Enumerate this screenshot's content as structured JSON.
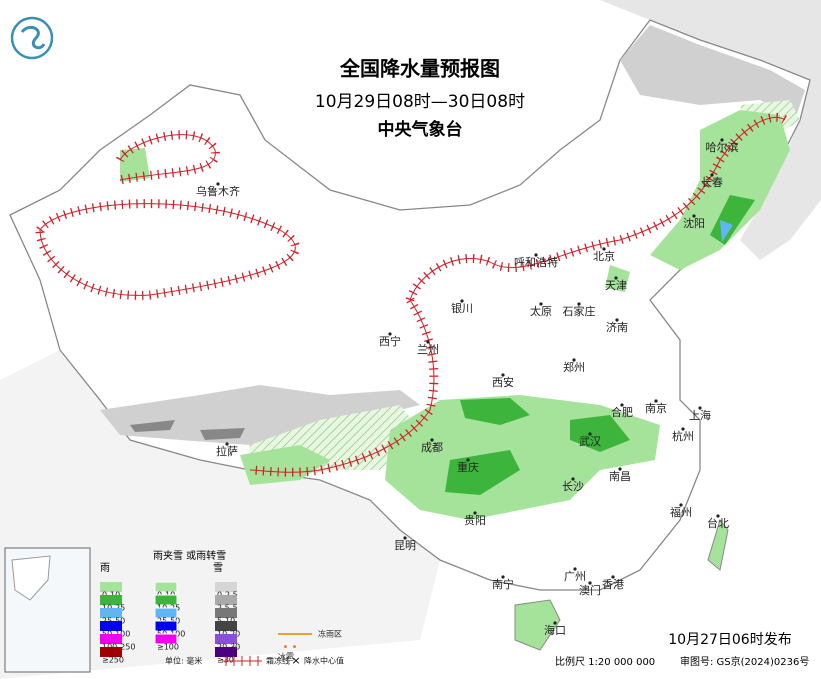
{
  "header": {
    "title": "全国降水量预报图",
    "subtitle": "10月29日08时—30日08时",
    "issuer": "中央气象台"
  },
  "footer": {
    "release": "10月27日06时发布",
    "scale": "比例尺 1:20 000 000",
    "review": "审图号: GS京(2024)0236号"
  },
  "legend": {
    "rain": {
      "title": "雨",
      "items": [
        {
          "label": "0-10",
          "color": "#a6e39a"
        },
        {
          "label": "10-25",
          "color": "#3db53d"
        },
        {
          "label": "25-50",
          "color": "#5fb6f2"
        },
        {
          "label": "50-100",
          "color": "#0000f0"
        },
        {
          "label": "100-250",
          "color": "#f000f0"
        },
        {
          "label": "≥250",
          "color": "#a00000"
        }
      ]
    },
    "sleet": {
      "title": "雨夹雪 或雨转雪",
      "items": [
        {
          "label": "0-10",
          "color": "#a6e39a"
        },
        {
          "label": "10-25",
          "color": "#3db53d"
        },
        {
          "label": "25-50",
          "color": "#5fb6f2"
        },
        {
          "label": "50-100",
          "color": "#0000f0"
        },
        {
          "label": "≥100",
          "color": "#f000f0"
        }
      ]
    },
    "snow": {
      "title": "雪",
      "items": [
        {
          "label": "0-2.5",
          "color": "#d5d5d5"
        },
        {
          "label": "2.5-5",
          "color": "#aaaaaa"
        },
        {
          "label": "5-10",
          "color": "#777777"
        },
        {
          "label": "10-20",
          "color": "#444444"
        },
        {
          "label": "20-30",
          "color": "#8a4fd8"
        },
        {
          "label": "≥30",
          "color": "#4b0082"
        }
      ]
    },
    "unit": "单位: 毫米",
    "symbols": {
      "freezing_rain": "冻雨区",
      "hail": "冰雹",
      "frost_line": "霜冻线",
      "center": "降水中心值"
    }
  },
  "cities": [
    "乌鲁木齐",
    "哈尔滨",
    "长春",
    "沈阳",
    "北京",
    "呼和浩特",
    "天津",
    "银川",
    "太原",
    "石家庄",
    "济南",
    "西宁",
    "兰州",
    "西安",
    "郑州",
    "合肥",
    "南京",
    "上海",
    "拉萨",
    "成都",
    "武汉",
    "杭州",
    "重庆",
    "长沙",
    "南昌",
    "福州",
    "台北",
    "贵阳",
    "昆明",
    "南宁",
    "广州",
    "澳门",
    "香港",
    "海口"
  ]
}
